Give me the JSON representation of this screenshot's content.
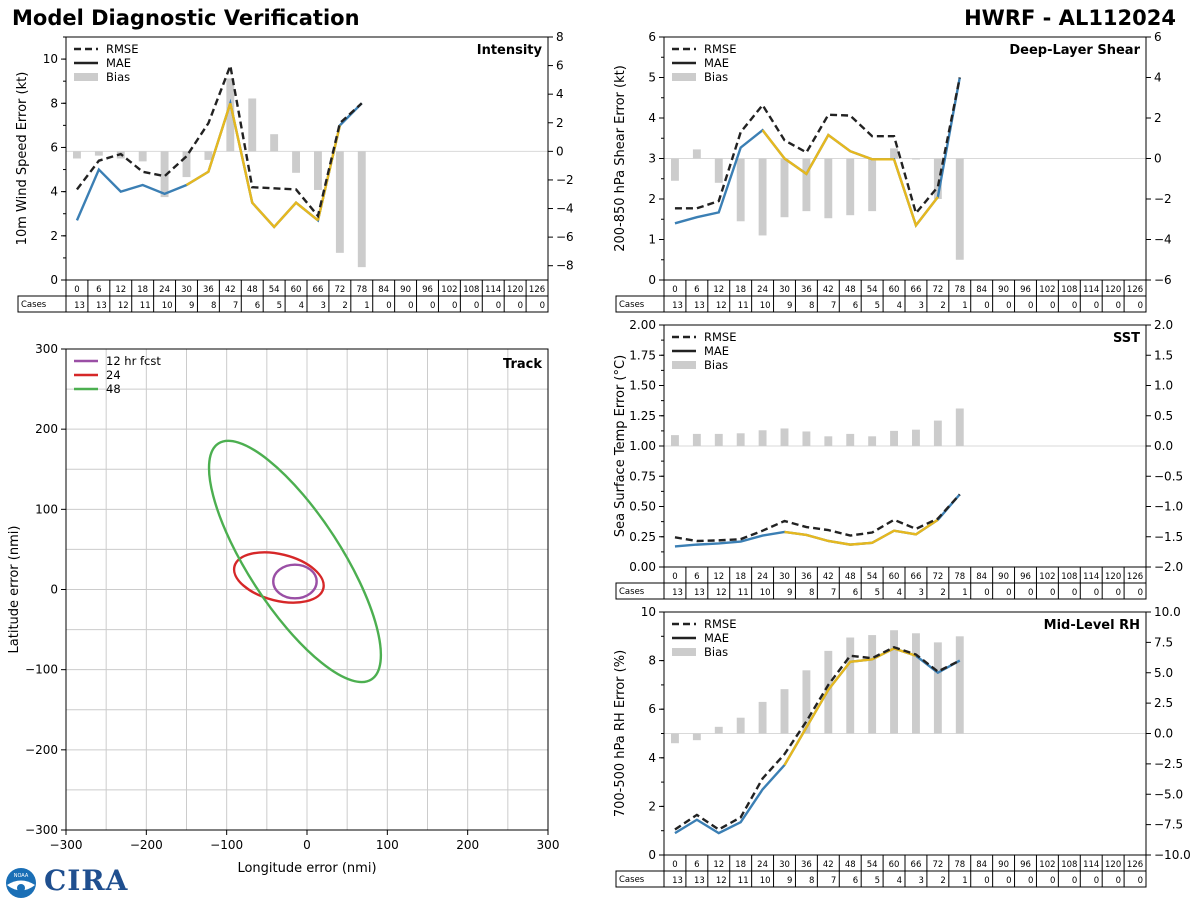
{
  "header": {
    "title": "Model Diagnostic Verification",
    "model_storm": "HWRF - AL112024"
  },
  "logos": {
    "noaa": "NOAA",
    "cira": "CIRA"
  },
  "colors": {
    "rmse": "#222222",
    "mae_blue": "#3b7fb4",
    "mae_yellow": "#e6b81f",
    "bias": "#cccccc",
    "grid": "#cccccc",
    "track12": "#9a4fa5",
    "track24": "#d62728",
    "track48": "#4caf50"
  },
  "forecast_hours": [
    0,
    6,
    12,
    18,
    24,
    30,
    36,
    42,
    48,
    54,
    60,
    66,
    72,
    78,
    84,
    90,
    96,
    102,
    108,
    114,
    120,
    126
  ],
  "cases": [
    13,
    13,
    12,
    11,
    10,
    9,
    8,
    7,
    6,
    5,
    4,
    3,
    2,
    1,
    0,
    0,
    0,
    0,
    0,
    0,
    0,
    0
  ],
  "cases_label": "Cases",
  "legend_labels": {
    "rmse": "RMSE",
    "mae": "MAE",
    "bias": "Bias"
  },
  "chart_data": [
    {
      "id": "intensity",
      "type": "line",
      "title": "Intensity",
      "ylabel": "10m Wind Speed Error (kt)",
      "ylim": [
        0,
        11
      ],
      "yticks": [
        0,
        2,
        4,
        6,
        8,
        10
      ],
      "y2lim": [
        -9,
        8
      ],
      "y2ticks": [
        -8,
        -6,
        -4,
        -2,
        0,
        2,
        4,
        6,
        8
      ],
      "bias_zero": 0,
      "x": [
        0,
        6,
        12,
        18,
        24,
        30,
        36,
        42,
        48,
        54,
        60,
        66,
        72,
        78
      ],
      "series": [
        {
          "name": "RMSE",
          "values": [
            4.1,
            5.4,
            5.7,
            4.9,
            4.7,
            5.6,
            7.1,
            9.7,
            4.2,
            4.15,
            4.1,
            2.9,
            7.1,
            8.0
          ]
        },
        {
          "name": "MAE",
          "values": [
            2.7,
            5.0,
            4.0,
            4.3,
            3.9,
            4.3,
            4.9,
            8.0,
            3.5,
            2.4,
            3.5,
            2.7,
            7.0,
            8.0
          ],
          "yellow_segments": [
            [
              5,
              7
            ],
            [
              7,
              11
            ],
            [
              11,
              12
            ]
          ]
        },
        {
          "name": "Bias",
          "values": [
            -0.5,
            -0.3,
            -0.5,
            -0.7,
            -3.2,
            -1.8,
            -0.6,
            5.1,
            3.7,
            1.2,
            -1.5,
            -2.7,
            -7.1,
            -8.1
          ]
        }
      ]
    },
    {
      "id": "shear",
      "type": "line",
      "title": "Deep-Layer Shear",
      "ylabel": "200-850 hPa Shear Error (kt)",
      "ylim": [
        0,
        6
      ],
      "yticks": [
        0,
        1,
        2,
        3,
        4,
        5,
        6
      ],
      "y2lim": [
        -6,
        6
      ],
      "y2ticks": [
        -6,
        -4,
        -2,
        0,
        2,
        4,
        6
      ],
      "bias_zero": 0,
      "x": [
        0,
        6,
        12,
        18,
        24,
        30,
        36,
        42,
        48,
        54,
        60,
        66,
        72,
        78
      ],
      "series": [
        {
          "name": "RMSE",
          "values": [
            1.77,
            1.77,
            1.95,
            3.65,
            4.32,
            3.45,
            3.15,
            4.08,
            4.06,
            3.55,
            3.55,
            1.65,
            2.3,
            5.0
          ]
        },
        {
          "name": "MAE",
          "values": [
            1.4,
            1.55,
            1.67,
            3.27,
            3.7,
            3.0,
            2.62,
            3.58,
            3.18,
            2.98,
            2.98,
            1.35,
            2.05,
            5.0
          ],
          "yellow_segments": [
            [
              4,
              10
            ],
            [
              10,
              12
            ]
          ]
        },
        {
          "name": "Bias",
          "values": [
            -1.1,
            0.45,
            -1.2,
            -3.1,
            -3.8,
            -2.9,
            -2.6,
            -2.95,
            -2.8,
            -2.6,
            0.5,
            0.0,
            -2.0,
            -5.0
          ]
        }
      ]
    },
    {
      "id": "sst",
      "type": "line",
      "title": "SST",
      "ylabel": "Sea Surface Temp Error (°C)",
      "ylim": [
        0,
        2
      ],
      "yticks": [
        0.0,
        0.25,
        0.5,
        0.75,
        1.0,
        1.25,
        1.5,
        1.75,
        2.0
      ],
      "y2lim": [
        -2,
        2
      ],
      "y2ticks": [
        -2.0,
        -1.5,
        -1.0,
        -0.5,
        0.0,
        0.5,
        1.0,
        1.5,
        2.0
      ],
      "bias_zero": 0,
      "x": [
        0,
        6,
        12,
        18,
        24,
        30,
        36,
        42,
        48,
        54,
        60,
        66,
        72,
        78
      ],
      "series": [
        {
          "name": "RMSE",
          "values": [
            0.245,
            0.215,
            0.22,
            0.23,
            0.3,
            0.38,
            0.33,
            0.305,
            0.26,
            0.285,
            0.39,
            0.315,
            0.4,
            0.6
          ]
        },
        {
          "name": "MAE",
          "values": [
            0.17,
            0.185,
            0.195,
            0.21,
            0.26,
            0.29,
            0.265,
            0.215,
            0.185,
            0.2,
            0.3,
            0.27,
            0.39,
            0.6
          ],
          "yellow_segments": [
            [
              5,
              12
            ]
          ]
        },
        {
          "name": "Bias",
          "values": [
            0.18,
            0.2,
            0.2,
            0.21,
            0.26,
            0.29,
            0.24,
            0.16,
            0.2,
            0.16,
            0.25,
            0.27,
            0.42,
            0.62
          ]
        }
      ]
    },
    {
      "id": "rh",
      "type": "line",
      "title": "Mid-Level RH",
      "ylabel": "700-500 hPa RH Error (%)",
      "ylim": [
        0,
        10
      ],
      "yticks": [
        0,
        2,
        4,
        6,
        8,
        10
      ],
      "y2lim": [
        -10,
        10
      ],
      "y2ticks": [
        -10.0,
        -7.5,
        -5.0,
        -2.5,
        0.0,
        2.5,
        5.0,
        7.5,
        10.0
      ],
      "bias_zero": 0,
      "x": [
        0,
        6,
        12,
        18,
        24,
        30,
        36,
        42,
        48,
        54,
        60,
        66,
        72,
        78
      ],
      "series": [
        {
          "name": "RMSE",
          "values": [
            1.05,
            1.65,
            1.05,
            1.55,
            3.15,
            4.15,
            5.5,
            7.0,
            8.2,
            8.1,
            8.55,
            8.25,
            7.55,
            8.0
          ]
        },
        {
          "name": "MAE",
          "values": [
            0.9,
            1.45,
            0.9,
            1.35,
            2.7,
            3.7,
            5.25,
            6.8,
            7.95,
            8.05,
            8.5,
            8.2,
            7.5,
            8.0
          ],
          "yellow_segments": [
            [
              5,
              11
            ]
          ]
        },
        {
          "name": "Bias",
          "values": [
            -0.8,
            -0.55,
            0.55,
            1.3,
            2.6,
            3.65,
            5.2,
            6.8,
            7.9,
            8.1,
            8.5,
            8.25,
            7.5,
            8.0
          ]
        }
      ]
    },
    {
      "id": "track",
      "type": "scatter",
      "title": "Track",
      "xlabel": "Longitude error (nmi)",
      "ylabel": "Latitude error (nmi)",
      "xlim": [
        -300,
        300
      ],
      "ylim": [
        -300,
        300
      ],
      "ticks": [
        -300,
        -200,
        -100,
        0,
        100,
        200,
        300
      ],
      "grid_step": 50,
      "ellipses": [
        {
          "name": "12 hr fcst",
          "cx": -15,
          "cy": 10,
          "rx": 27,
          "ry": 21,
          "angle": 0
        },
        {
          "name": "24",
          "cx": -35,
          "cy": 15,
          "rx": 57,
          "ry": 29,
          "angle": -14
        },
        {
          "name": "48",
          "cx": -15,
          "cy": 35,
          "rx": 175,
          "ry": 58,
          "angle": -57
        }
      ]
    }
  ]
}
